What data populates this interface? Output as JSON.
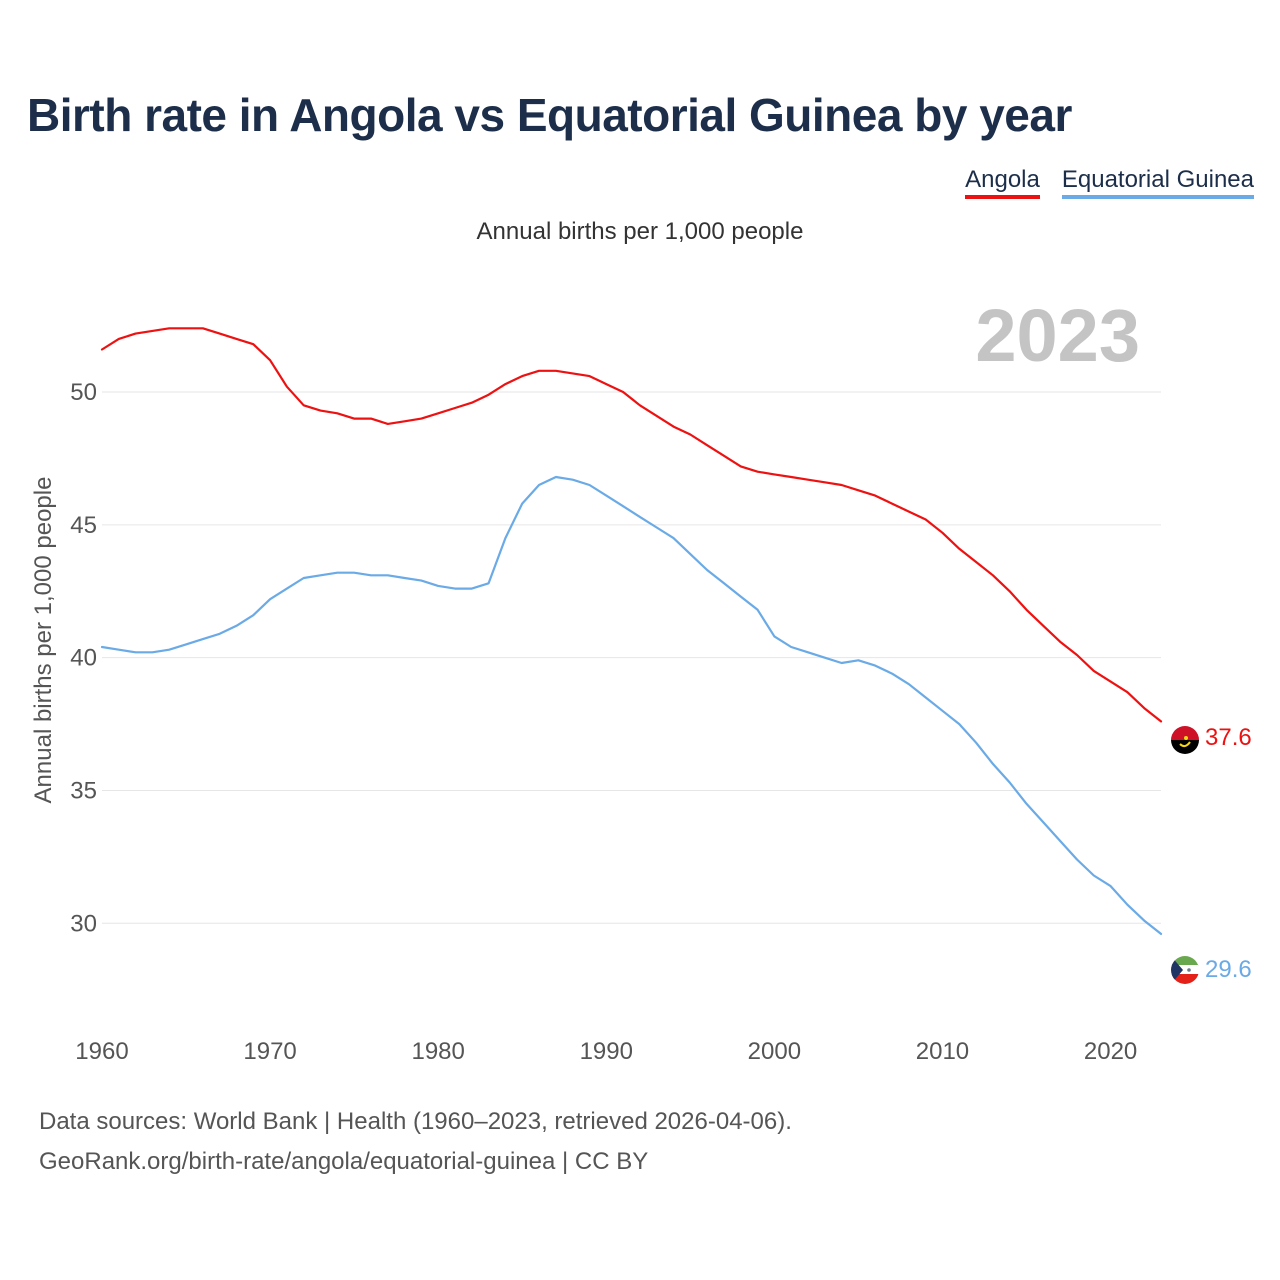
{
  "title": "Birth rate in Angola vs Equatorial Guinea by year",
  "subtitle": "Annual births per 1,000 people",
  "legend": [
    {
      "label": "Angola",
      "color": "#ee1111"
    },
    {
      "label": "Equatorial Guinea",
      "color": "#6aaae6"
    }
  ],
  "footer": {
    "line1": "Data sources: World Bank | Health (1960–2023, retrieved 2026-04-06).",
    "line2": "GeoRank.org/birth-rate/angola/equatorial-guinea | CC BY"
  },
  "chart_data": {
    "type": "line",
    "title": "Birth rate in Angola vs Equatorial Guinea by year",
    "ylabel": "Annual births per 1,000 people",
    "xlabel": "",
    "year_label": "2023",
    "xlim": [
      1960,
      2023
    ],
    "ylim": [
      27.3,
      52.9
    ],
    "xticks": [
      1960,
      1970,
      1980,
      1990,
      2000,
      2010,
      2020
    ],
    "yticks": [
      30,
      35,
      40,
      45,
      50
    ],
    "grid": true,
    "x": [
      1960,
      1961,
      1962,
      1963,
      1964,
      1965,
      1966,
      1967,
      1968,
      1969,
      1970,
      1971,
      1972,
      1973,
      1974,
      1975,
      1976,
      1977,
      1978,
      1979,
      1980,
      1981,
      1982,
      1983,
      1984,
      1985,
      1986,
      1987,
      1988,
      1989,
      1990,
      1991,
      1992,
      1993,
      1994,
      1995,
      1996,
      1997,
      1998,
      1999,
      2000,
      2001,
      2002,
      2003,
      2004,
      2005,
      2006,
      2007,
      2008,
      2009,
      2010,
      2011,
      2012,
      2013,
      2014,
      2015,
      2016,
      2017,
      2018,
      2019,
      2020,
      2021,
      2022,
      2023
    ],
    "series": [
      {
        "name": "Angola",
        "color": "#ee1111",
        "end_label": "37.6",
        "values": [
          51.6,
          52.0,
          52.2,
          52.3,
          52.4,
          52.4,
          52.4,
          52.2,
          52.0,
          51.8,
          51.2,
          50.2,
          49.5,
          49.3,
          49.2,
          49.0,
          49.0,
          48.8,
          48.9,
          49.0,
          49.2,
          49.4,
          49.6,
          49.9,
          50.3,
          50.6,
          50.8,
          50.8,
          50.7,
          50.6,
          50.3,
          50.0,
          49.5,
          49.1,
          48.7,
          48.4,
          48.0,
          47.6,
          47.2,
          47.0,
          46.9,
          46.8,
          46.7,
          46.6,
          46.5,
          46.3,
          46.1,
          45.8,
          45.5,
          45.2,
          44.7,
          44.1,
          43.6,
          43.1,
          42.5,
          41.8,
          41.2,
          40.6,
          40.1,
          39.5,
          39.1,
          38.7,
          38.1,
          37.6
        ]
      },
      {
        "name": "Equatorial Guinea",
        "color": "#6aaae6",
        "end_label": "29.6",
        "values": [
          40.4,
          40.3,
          40.2,
          40.2,
          40.3,
          40.5,
          40.7,
          40.9,
          41.2,
          41.6,
          42.2,
          42.6,
          43.0,
          43.1,
          43.2,
          43.2,
          43.1,
          43.1,
          43.0,
          42.9,
          42.7,
          42.6,
          42.6,
          42.8,
          44.5,
          45.8,
          46.5,
          46.8,
          46.7,
          46.5,
          46.1,
          45.7,
          45.3,
          44.9,
          44.5,
          43.9,
          43.3,
          42.8,
          42.3,
          41.8,
          40.8,
          40.4,
          40.2,
          40.0,
          39.8,
          39.9,
          39.7,
          39.4,
          39.0,
          38.5,
          38.0,
          37.5,
          36.8,
          36.0,
          35.3,
          34.5,
          33.8,
          33.1,
          32.4,
          31.8,
          31.4,
          30.7,
          30.1,
          29.6
        ]
      }
    ]
  }
}
